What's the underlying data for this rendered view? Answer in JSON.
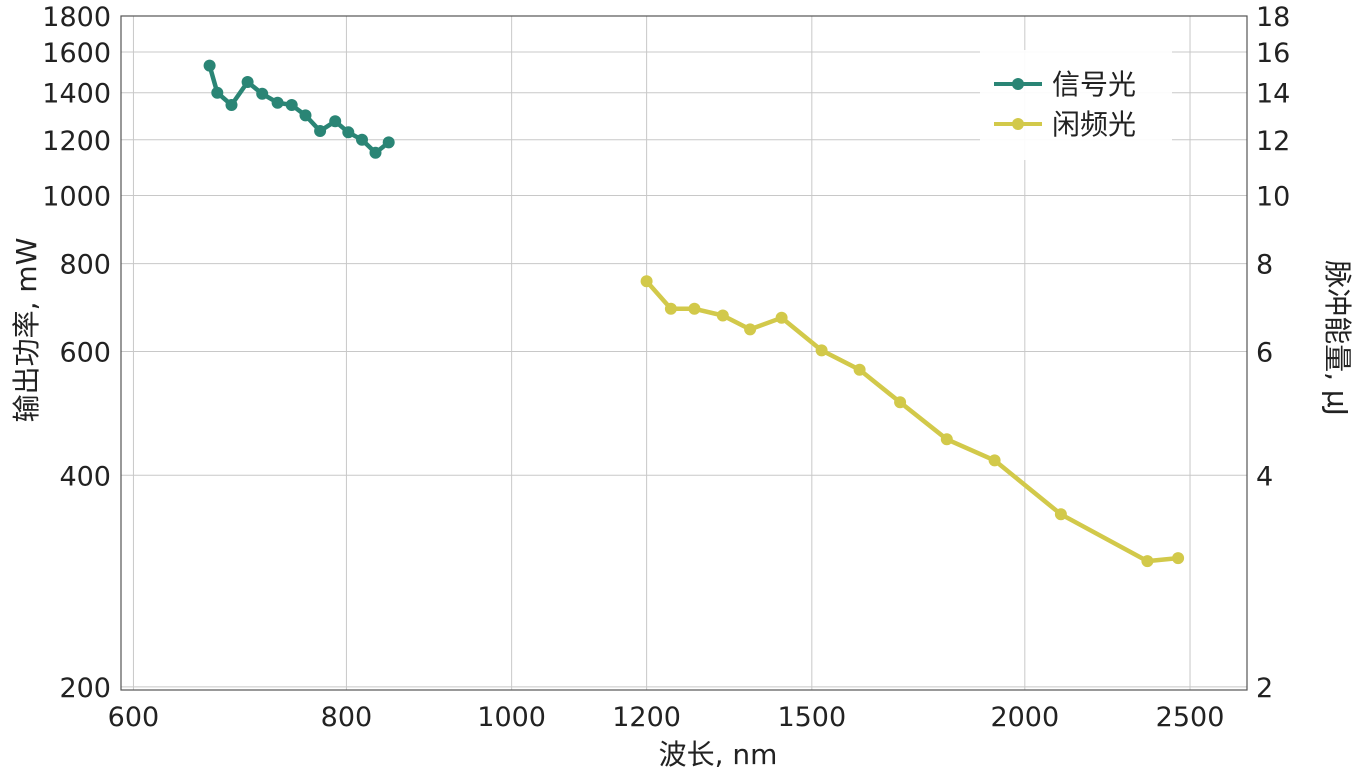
{
  "chart_data": {
    "type": "line",
    "xlabel": "波长, nm",
    "ylabel_left": "输出功率, mW",
    "ylabel_right": "脉冲能量, μJ",
    "x_scale": "log",
    "y_scale": "log",
    "xlim": [
      590,
      2700
    ],
    "ylim_left": [
      198,
      1800
    ],
    "ylim_right": [
      1.98,
      18
    ],
    "x_ticks": [
      600,
      800,
      1000,
      1200,
      1500,
      2000,
      2500
    ],
    "y_left_ticks": [
      200,
      400,
      600,
      800,
      1000,
      1200,
      1400,
      1600,
      1800
    ],
    "y_right_ticks": [
      2,
      4,
      6,
      8,
      10,
      12,
      14,
      16,
      18
    ],
    "grid": true,
    "legend_position": "top-right",
    "series": [
      {
        "name": "信号光",
        "color": "#2a8575",
        "x": [
          665,
          672,
          685,
          700,
          714,
          729,
          743,
          757,
          772,
          788,
          802,
          817,
          832,
          847
        ],
        "y": [
          1530,
          1400,
          1345,
          1450,
          1395,
          1355,
          1345,
          1300,
          1235,
          1275,
          1230,
          1200,
          1150,
          1190
        ]
      },
      {
        "name": "闲频光",
        "color": "#d2c94a",
        "x": [
          1200,
          1240,
          1280,
          1330,
          1380,
          1440,
          1520,
          1600,
          1690,
          1800,
          1920,
          2100,
          2360,
          2460
        ],
        "y": [
          755,
          690,
          690,
          675,
          645,
          670,
          602,
          565,
          508,
          450,
          420,
          352,
          302,
          305
        ]
      }
    ]
  }
}
